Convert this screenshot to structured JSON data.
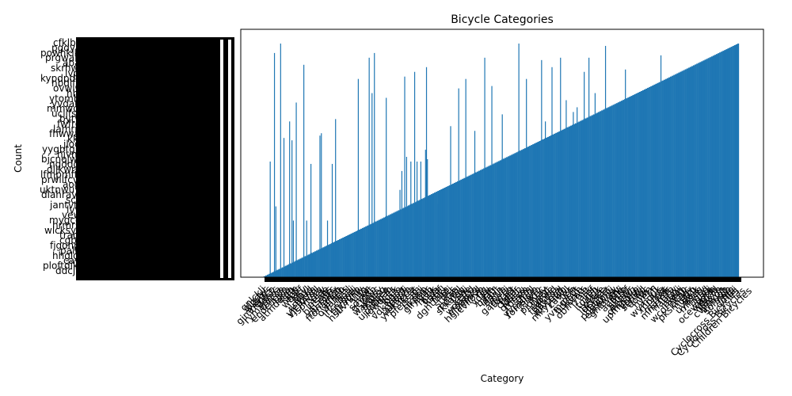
{
  "chart_data": {
    "type": "bar",
    "title": "Bicycle Categories",
    "xlabel": "Category",
    "ylabel": "Count",
    "bar_color": "#1f77b4",
    "grid": false,
    "legend": "none",
    "x_tick_rotation_deg": 45,
    "last_categories": [
      "Cyclocross Bicycles",
      "Cyclocross Bicycles",
      "Children Bicycles"
    ],
    "bars_rising": {
      "count": 290,
      "start": 0.004,
      "end": 0.99
    },
    "bars_tall": [
      {
        "at": 0.012,
        "value": 0.49
      },
      {
        "at": 0.021,
        "value": 0.95
      },
      {
        "at": 0.034,
        "value": 0.99
      },
      {
        "at": 0.041,
        "value": 0.59
      },
      {
        "at": 0.053,
        "value": 0.66
      },
      {
        "at": 0.058,
        "value": 0.58
      },
      {
        "at": 0.067,
        "value": 0.74
      },
      {
        "at": 0.083,
        "value": 0.9
      },
      {
        "at": 0.098,
        "value": 0.48
      },
      {
        "at": 0.117,
        "value": 0.6
      },
      {
        "at": 0.12,
        "value": 0.61
      },
      {
        "at": 0.143,
        "value": 0.48
      },
      {
        "at": 0.15,
        "value": 0.67
      },
      {
        "at": 0.198,
        "value": 0.84
      },
      {
        "at": 0.221,
        "value": 0.93
      },
      {
        "at": 0.227,
        "value": 0.78
      },
      {
        "at": 0.232,
        "value": 0.95
      },
      {
        "at": 0.257,
        "value": 0.76
      },
      {
        "at": 0.29,
        "value": 0.45
      },
      {
        "at": 0.296,
        "value": 0.85
      },
      {
        "at": 0.3,
        "value": 0.51
      },
      {
        "at": 0.309,
        "value": 0.49
      },
      {
        "at": 0.317,
        "value": 0.87
      },
      {
        "at": 0.322,
        "value": 0.49
      },
      {
        "at": 0.33,
        "value": 0.49
      },
      {
        "at": 0.34,
        "value": 0.54
      },
      {
        "at": 0.342,
        "value": 0.89
      },
      {
        "at": 0.344,
        "value": 0.5
      },
      {
        "at": 0.393,
        "value": 0.64
      },
      {
        "at": 0.41,
        "value": 0.8
      },
      {
        "at": 0.425,
        "value": 0.84
      },
      {
        "at": 0.444,
        "value": 0.62
      },
      {
        "at": 0.465,
        "value": 0.93
      },
      {
        "at": 0.48,
        "value": 0.81
      },
      {
        "at": 0.502,
        "value": 0.69
      },
      {
        "at": 0.537,
        "value": 0.99
      },
      {
        "at": 0.553,
        "value": 0.84
      },
      {
        "at": 0.585,
        "value": 0.92
      },
      {
        "at": 0.593,
        "value": 0.66
      },
      {
        "at": 0.607,
        "value": 0.89
      },
      {
        "at": 0.625,
        "value": 0.93
      },
      {
        "at": 0.637,
        "value": 0.75
      },
      {
        "at": 0.652,
        "value": 0.7
      },
      {
        "at": 0.66,
        "value": 0.72
      },
      {
        "at": 0.675,
        "value": 0.87
      },
      {
        "at": 0.685,
        "value": 0.93
      },
      {
        "at": 0.698,
        "value": 0.78
      },
      {
        "at": 0.72,
        "value": 0.98
      },
      {
        "at": 0.762,
        "value": 0.88
      },
      {
        "at": 0.837,
        "value": 0.94
      },
      {
        "at": 0.995,
        "value": 0.98
      }
    ],
    "bars_small": [
      {
        "at": 0.024,
        "value": 0.3
      },
      {
        "at": 0.061,
        "value": 0.24
      },
      {
        "at": 0.089,
        "value": 0.24
      },
      {
        "at": 0.133,
        "value": 0.24
      },
      {
        "at": 0.286,
        "value": 0.37
      },
      {
        "at": 0.366,
        "value": 0.31
      }
    ]
  }
}
